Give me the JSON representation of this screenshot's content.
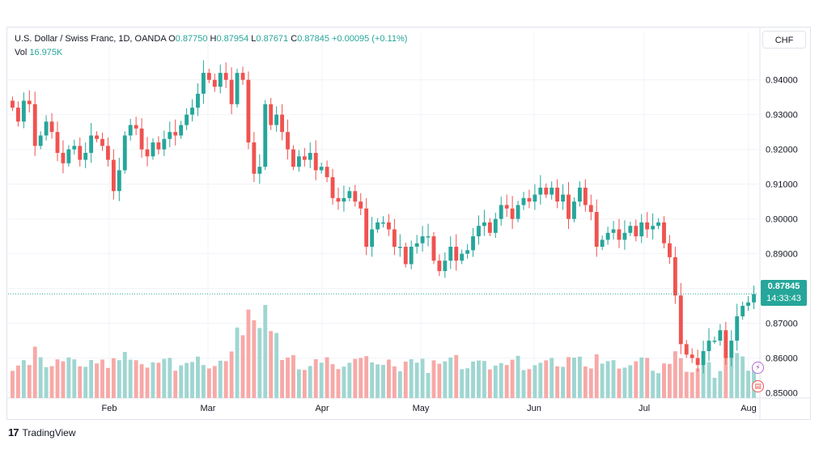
{
  "legend": {
    "symbol": "U.S. Dollar / Swiss Franc, 1D, OANDA",
    "o_label": "O",
    "o": "0.87750",
    "h_label": "H",
    "h": "0.87954",
    "l_label": "L",
    "l": "0.87671",
    "c_label": "C",
    "c": "0.87845",
    "change": "+0.00095 (+0.11%)",
    "vol_label": "Vol",
    "vol": "16.975K"
  },
  "currency_button": "CHF",
  "price_tag": {
    "price": "0.87845",
    "countdown": "14:33:43"
  },
  "branding": {
    "logo": "17",
    "name": "TradingView"
  },
  "colors": {
    "up": "#26a69a",
    "down": "#ef5350",
    "vol_up": "#9fd6d1",
    "vol_down": "#f7a9a7",
    "grid": "#f0f3fa"
  },
  "chart_data": {
    "type": "candlestick",
    "x_axis_labels": [
      "Feb",
      "Mar",
      "Apr",
      "May",
      "Jun",
      "Jul",
      "Aug"
    ],
    "y_axis_labels": [
      "0.94000",
      "0.93000",
      "0.92000",
      "0.91000",
      "0.90000",
      "0.89000",
      "0.88000",
      "0.87000",
      "0.86000",
      "0.85000"
    ],
    "ylim": [
      0.8485,
      0.949
    ],
    "last_price": 0.87845,
    "grid": true,
    "close_series": [
      0.932,
      0.928,
      0.934,
      0.933,
      0.921,
      0.924,
      0.928,
      0.925,
      0.919,
      0.916,
      0.92,
      0.921,
      0.917,
      0.919,
      0.924,
      0.923,
      0.921,
      0.917,
      0.908,
      0.914,
      0.924,
      0.927,
      0.926,
      0.92,
      0.918,
      0.922,
      0.92,
      0.923,
      0.925,
      0.924,
      0.927,
      0.93,
      0.932,
      0.936,
      0.942,
      0.94,
      0.938,
      0.942,
      0.94,
      0.933,
      0.942,
      0.94,
      0.922,
      0.913,
      0.915,
      0.933,
      0.927,
      0.93,
      0.925,
      0.92,
      0.915,
      0.918,
      0.917,
      0.919,
      0.914,
      0.915,
      0.912,
      0.906,
      0.905,
      0.906,
      0.908,
      0.905,
      0.903,
      0.892,
      0.897,
      0.899,
      0.899,
      0.897,
      0.892,
      0.892,
      0.887,
      0.892,
      0.893,
      0.895,
      0.895,
      0.888,
      0.885,
      0.888,
      0.892,
      0.888,
      0.89,
      0.891,
      0.895,
      0.898,
      0.899,
      0.896,
      0.9,
      0.904,
      0.903,
      0.9,
      0.904,
      0.906,
      0.905,
      0.907,
      0.909,
      0.907,
      0.909,
      0.905,
      0.907,
      0.9,
      0.905,
      0.909,
      0.904,
      0.902,
      0.892,
      0.894,
      0.896,
      0.897,
      0.894,
      0.896,
      0.898,
      0.895,
      0.899,
      0.897,
      0.898,
      0.899,
      0.893,
      0.889,
      0.878,
      0.864,
      0.861,
      0.86,
      0.858,
      0.862,
      0.865,
      0.865,
      0.868,
      0.86,
      0.865,
      0.872,
      0.875,
      0.876,
      0.8784
    ]
  }
}
